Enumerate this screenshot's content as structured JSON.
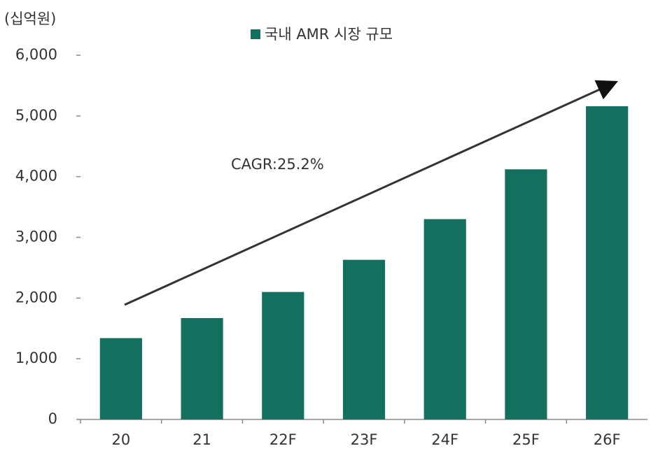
{
  "chart_data": {
    "type": "bar",
    "unit_label": "(십억원)",
    "legend_label": "국내 AMR 시장 규모",
    "annotation": "CAGR:25.2%",
    "categories": [
      "20",
      "21",
      "22F",
      "23F",
      "24F",
      "25F",
      "26F"
    ],
    "values": [
      1340,
      1670,
      2100,
      2630,
      3300,
      4120,
      5160
    ],
    "color": "#13705f",
    "ylim": [
      0,
      6000
    ],
    "yticks": [
      0,
      {
        "value": 1000,
        "label": "1,000"
      },
      {
        "value": 2000,
        "label": "2,000"
      },
      {
        "value": 3000,
        "label": "3,000"
      },
      {
        "value": 4000,
        "label": "4,000"
      },
      {
        "value": 5000,
        "label": "5,000"
      },
      {
        "value": 6000,
        "label": "6,000"
      }
    ],
    "grid": false
  }
}
